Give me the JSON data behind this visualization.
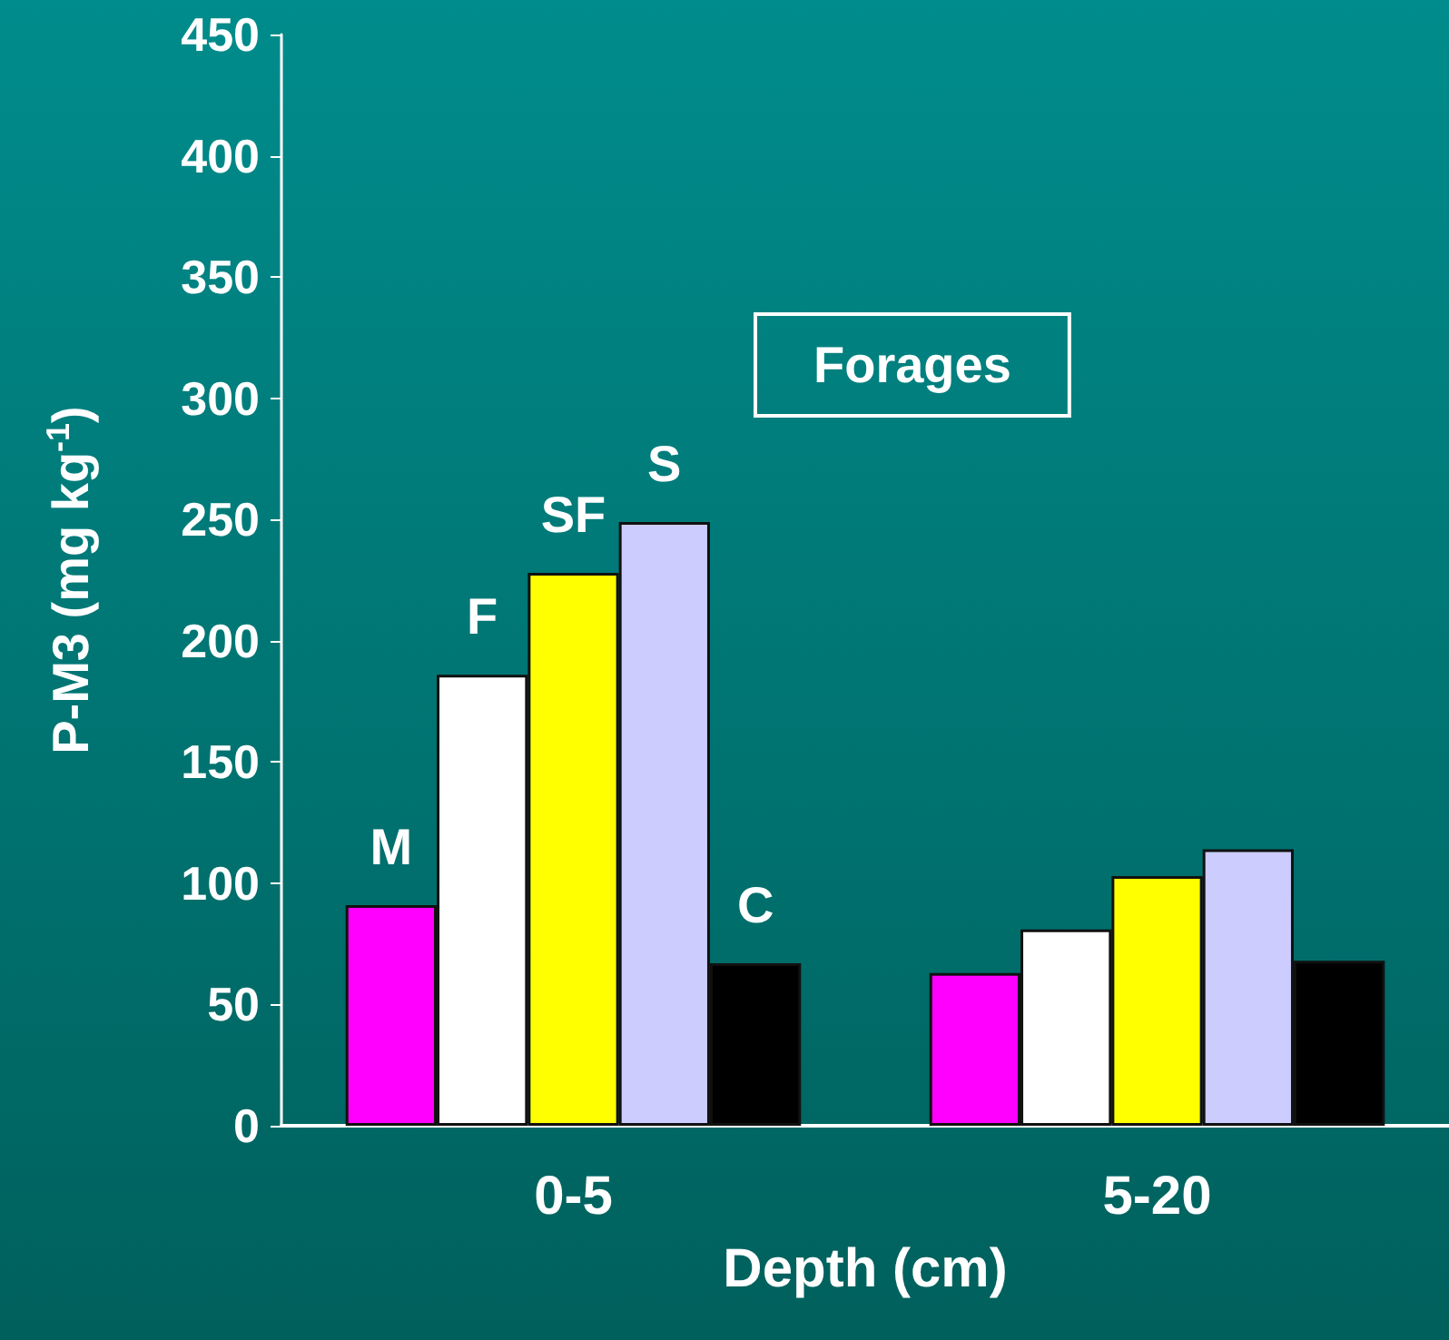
{
  "chart_data": {
    "type": "bar",
    "xlabel": "Depth (cm)",
    "ylabel": "P-M3 (mg kg$^{-1}$)",
    "categories": [
      "0-5",
      "5-20"
    ],
    "series": [
      {
        "name": "M",
        "color": "#ff00ff",
        "values": [
          91,
          63
        ]
      },
      {
        "name": "F",
        "color": "#ffffff",
        "values": [
          186,
          81
        ]
      },
      {
        "name": "SF",
        "color": "#ffff00",
        "values": [
          228,
          103
        ]
      },
      {
        "name": "S",
        "color": "#ccccff",
        "values": [
          249,
          114
        ]
      },
      {
        "name": "C",
        "color": "#000000",
        "values": [
          67,
          68
        ]
      }
    ],
    "ylim": [
      0,
      450
    ],
    "yticks": [
      0,
      50,
      100,
      150,
      200,
      250,
      300,
      350,
      400,
      450
    ],
    "grid": false,
    "legend": false,
    "annotations": [
      "Forages"
    ]
  }
}
